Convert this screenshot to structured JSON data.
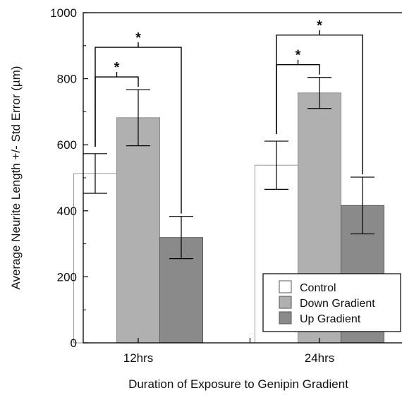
{
  "chart_data": {
    "type": "bar",
    "title": "",
    "xlabel": "Duration of Exposure to Genipin Gradient",
    "ylabel": "Average Neurite Length +/- Std Error (µm)",
    "ylim": [
      0,
      1000
    ],
    "yticks": [
      0,
      200,
      400,
      600,
      800,
      1000
    ],
    "categories": [
      "12hrs",
      "24hrs"
    ],
    "series": [
      {
        "name": "Control",
        "color": "#ffffff",
        "values": [
          513,
          538
        ],
        "errors": [
          60,
          73
        ]
      },
      {
        "name": "Down Gradient",
        "color": "#b0b0b0",
        "values": [
          682,
          757
        ],
        "errors": [
          85,
          47
        ]
      },
      {
        "name": "Up Gradient",
        "color": "#8a8a8a",
        "values": [
          319,
          416
        ],
        "errors": [
          64,
          86
        ]
      }
    ],
    "legend_position": "bottom-right",
    "significance": [
      {
        "category": "12hrs",
        "from": "Control",
        "to": "Down Gradient",
        "label": "*"
      },
      {
        "category": "12hrs",
        "from": "Control",
        "to": "Up Gradient",
        "label": "*"
      },
      {
        "category": "24hrs",
        "from": "Control",
        "to": "Down Gradient",
        "label": "*"
      },
      {
        "category": "24hrs",
        "from": "Control",
        "to": "Up Gradient",
        "label": "*"
      }
    ]
  }
}
